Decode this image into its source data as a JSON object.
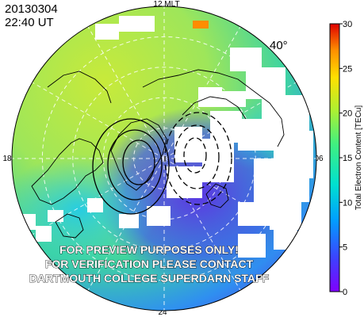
{
  "header": {
    "date": "20130304",
    "time": "22:40 UT"
  },
  "map": {
    "lat_label": "40°",
    "mlt_labels": {
      "top": "12 MLT",
      "left": "18",
      "right": "06",
      "bottom": "24"
    }
  },
  "watermark": {
    "lines": [
      "FOR PREVIEW PURPOSES ONLY!",
      "FOR VERIFICATION PLEASE CONTACT",
      "DARTMOUTH COLLEGE SUPERDARN STAFF"
    ]
  },
  "colorbar": {
    "label": "Total Electron Content [TECu]",
    "ticks": [
      "0",
      "5",
      "10",
      "15",
      "20",
      "25",
      "30"
    ],
    "min": 0,
    "max": 30,
    "colors": [
      "#8000ff",
      "#3f3fff",
      "#00a0ff",
      "#00e0d0",
      "#40f080",
      "#b0f030",
      "#ffe000",
      "#ff9000",
      "#ff2000",
      "#e00000"
    ]
  },
  "colors": {
    "map_high": "#b8e84a",
    "map_mid": "#3fd49a",
    "map_low": "#4a3ce6",
    "coast": "#000000",
    "grid": "#ffffff",
    "convection": "#000000"
  }
}
